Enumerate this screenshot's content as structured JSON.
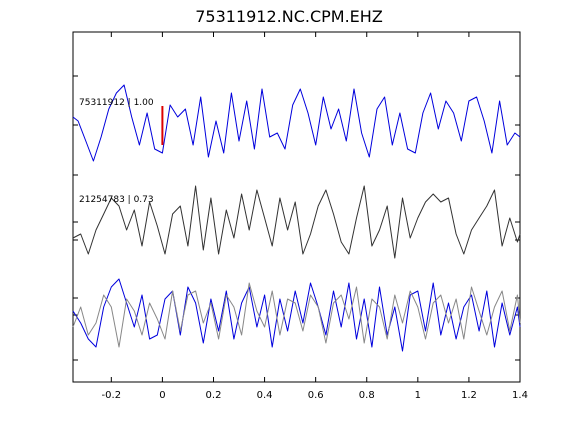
{
  "chart_data": {
    "type": "line",
    "title": "75311912.NC.CPM.EHZ",
    "xlim": [
      -0.35,
      1.4
    ],
    "x_ticks": [
      -0.2,
      0,
      0.2,
      0.4,
      0.6,
      0.8,
      1,
      1.2,
      1.4
    ],
    "x_tick_labels": [
      "-0.2",
      "0",
      "0.2",
      "0.4",
      "0.6",
      "0.8",
      "1",
      "1.2",
      "1.4"
    ],
    "y_tick_labels_visible": false,
    "grid": false,
    "legend": "none",
    "pick_marker": {
      "x": 0,
      "color": "#dd0000"
    },
    "panels": [
      {
        "label": "75311912 | 1.00",
        "series": [
          {
            "color": "#0000dd",
            "x": [
              -0.35,
              -0.33,
              -0.3,
              -0.27,
              -0.24,
              -0.21,
              -0.18,
              -0.15,
              -0.12,
              -0.09,
              -0.06,
              -0.03,
              0,
              0.03,
              0.06,
              0.09,
              0.12,
              0.15,
              0.18,
              0.21,
              0.24,
              0.27,
              0.3,
              0.33,
              0.36,
              0.39,
              0.42,
              0.45,
              0.48,
              0.51,
              0.54,
              0.57,
              0.6,
              0.63,
              0.66,
              0.69,
              0.72,
              0.75,
              0.78,
              0.81,
              0.84,
              0.87,
              0.9,
              0.93,
              0.96,
              0.99,
              1.02,
              1.05,
              1.08,
              1.11,
              1.14,
              1.17,
              1.2,
              1.23,
              1.26,
              1.29,
              1.32,
              1.35,
              1.38,
              1.4
            ],
            "y": [
              0.2,
              0.1,
              -0.4,
              -0.9,
              -0.3,
              0.4,
              0.8,
              1.0,
              0.2,
              -0.5,
              0.3,
              -0.6,
              -0.7,
              0.5,
              0.2,
              0.4,
              -0.5,
              0.7,
              -0.8,
              0.1,
              -0.7,
              0.8,
              -0.4,
              0.6,
              -0.6,
              0.9,
              -0.3,
              -0.2,
              -0.6,
              0.5,
              0.9,
              0.3,
              -0.5,
              0.7,
              -0.1,
              0.4,
              -0.4,
              0.9,
              -0.2,
              -0.8,
              0.4,
              0.7,
              -0.5,
              0.3,
              -0.6,
              -0.7,
              0.3,
              0.8,
              -0.1,
              0.6,
              0.3,
              -0.4,
              0.6,
              0.7,
              0.1,
              -0.7,
              0.6,
              -0.5,
              -0.2,
              -0.3
            ]
          }
        ]
      },
      {
        "label": "21254783 | 0.73",
        "series": [
          {
            "color": "#333333",
            "x": [
              -0.35,
              -0.32,
              -0.29,
              -0.26,
              -0.23,
              -0.2,
              -0.17,
              -0.14,
              -0.11,
              -0.08,
              -0.05,
              -0.02,
              0.01,
              0.04,
              0.07,
              0.1,
              0.13,
              0.16,
              0.19,
              0.22,
              0.25,
              0.28,
              0.31,
              0.34,
              0.37,
              0.4,
              0.43,
              0.46,
              0.49,
              0.52,
              0.55,
              0.58,
              0.61,
              0.64,
              0.67,
              0.7,
              0.73,
              0.76,
              0.79,
              0.82,
              0.85,
              0.88,
              0.91,
              0.94,
              0.97,
              1.0,
              1.03,
              1.06,
              1.09,
              1.12,
              1.15,
              1.18,
              1.21,
              1.24,
              1.27,
              1.3,
              1.33,
              1.36,
              1.39,
              1.4
            ],
            "y": [
              -0.4,
              -0.3,
              -0.8,
              -0.2,
              0.2,
              0.6,
              0.4,
              -0.2,
              0.3,
              -0.6,
              0.5,
              -0.1,
              -0.8,
              0.2,
              0.4,
              -0.6,
              0.9,
              -0.7,
              0.6,
              -0.8,
              0.3,
              -0.4,
              0.7,
              -0.2,
              0.8,
              0.1,
              -0.6,
              0.6,
              -0.2,
              0.5,
              -0.8,
              -0.3,
              0.4,
              0.8,
              0.2,
              -0.5,
              -0.8,
              0.1,
              0.9,
              -0.6,
              -0.2,
              0.4,
              -0.9,
              0.6,
              -0.4,
              0.1,
              0.5,
              0.7,
              0.5,
              0.6,
              -0.3,
              -0.8,
              -0.2,
              0.1,
              0.4,
              0.8,
              -0.6,
              0.1,
              -0.5,
              -0.3
            ]
          }
        ]
      },
      {
        "label": "",
        "series": [
          {
            "color": "#0000dd",
            "x": [
              -0.35,
              -0.32,
              -0.29,
              -0.26,
              -0.23,
              -0.2,
              -0.17,
              -0.14,
              -0.11,
              -0.08,
              -0.05,
              -0.02,
              0.01,
              0.04,
              0.07,
              0.1,
              0.13,
              0.16,
              0.19,
              0.22,
              0.25,
              0.28,
              0.31,
              0.34,
              0.37,
              0.4,
              0.43,
              0.46,
              0.49,
              0.52,
              0.55,
              0.58,
              0.61,
              0.64,
              0.67,
              0.7,
              0.73,
              0.76,
              0.79,
              0.82,
              0.85,
              0.88,
              0.91,
              0.94,
              0.97,
              1.0,
              1.03,
              1.06,
              1.09,
              1.12,
              1.15,
              1.18,
              1.21,
              1.24,
              1.27,
              1.3,
              1.33,
              1.36,
              1.39,
              1.4
            ],
            "y": [
              0.1,
              -0.2,
              -0.6,
              -0.8,
              0.2,
              0.7,
              0.9,
              0.3,
              -0.3,
              0.5,
              -0.6,
              -0.5,
              0.4,
              0.6,
              -0.5,
              0.7,
              0.3,
              -0.7,
              0.4,
              -0.4,
              0.6,
              -0.6,
              0.3,
              0.7,
              -0.3,
              0.5,
              -0.8,
              0.4,
              -0.4,
              0.6,
              -0.2,
              0.8,
              0.2,
              -0.5,
              0.6,
              -0.3,
              0.8,
              -0.6,
              0.4,
              -0.8,
              0.7,
              -0.5,
              0.2,
              -0.9,
              0.5,
              0.6,
              -0.4,
              0.8,
              -0.5,
              0.3,
              -0.6,
              0.2,
              0.5,
              -0.4,
              0.6,
              -0.8,
              0.3,
              -0.5,
              0.2,
              -0.3
            ]
          },
          {
            "color": "#888888",
            "x": [
              -0.35,
              -0.32,
              -0.29,
              -0.26,
              -0.23,
              -0.2,
              -0.17,
              -0.14,
              -0.11,
              -0.08,
              -0.05,
              -0.02,
              0.01,
              0.04,
              0.07,
              0.1,
              0.13,
              0.16,
              0.19,
              0.22,
              0.25,
              0.28,
              0.31,
              0.34,
              0.37,
              0.4,
              0.43,
              0.46,
              0.49,
              0.52,
              0.55,
              0.58,
              0.61,
              0.64,
              0.67,
              0.7,
              0.73,
              0.76,
              0.79,
              0.82,
              0.85,
              0.88,
              0.91,
              0.94,
              0.97,
              1.0,
              1.03,
              1.06,
              1.09,
              1.12,
              1.15,
              1.18,
              1.21,
              1.24,
              1.27,
              1.3,
              1.33,
              1.36,
              1.39,
              1.4
            ],
            "y": [
              -0.3,
              0.2,
              -0.5,
              -0.2,
              0.5,
              0.2,
              -0.8,
              0.4,
              0.1,
              -0.5,
              0.3,
              -0.1,
              -0.6,
              0.6,
              -0.4,
              0.5,
              0.6,
              -0.2,
              0.3,
              -0.6,
              0.5,
              0.2,
              -0.5,
              0.8,
              0.1,
              -0.3,
              0.6,
              -0.5,
              0.4,
              0.3,
              -0.4,
              0.5,
              0.2,
              -0.7,
              0.3,
              0.5,
              -0.1,
              0.7,
              -0.7,
              0.4,
              0.2,
              -0.6,
              0.5,
              -0.2,
              0.6,
              0.2,
              -0.6,
              0.3,
              0.5,
              -0.2,
              0.4,
              -0.6,
              0.7,
              0.1,
              -0.5,
              0.2,
              0.6,
              -0.4,
              0.5,
              -0.2
            ]
          }
        ]
      }
    ]
  }
}
